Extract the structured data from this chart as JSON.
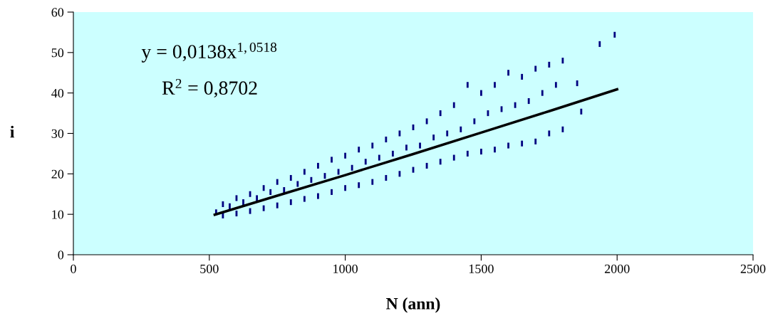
{
  "chart_data": {
    "type": "scatter",
    "xlabel": "N (ann)",
    "ylabel": "i",
    "xlim": [
      0,
      2500
    ],
    "xticks": [
      0,
      500,
      1000,
      1500,
      2000,
      2500
    ],
    "ylim": [
      0,
      60
    ],
    "yticks": [
      0,
      10,
      20,
      30,
      40,
      50,
      60
    ],
    "grid": false,
    "legend": false,
    "annotations": [
      "y = 0,0138x$^{1,0518}$",
      "R$^{2}$ = 0,8702"
    ],
    "series": [
      {
        "type": "scatter",
        "color": "#000080",
        "values": [
          10.5,
          12.5,
          9.7,
          12,
          14,
          10.2,
          13,
          15,
          10.8,
          14,
          16.5,
          11.5,
          15.5,
          18,
          12.2,
          16,
          19,
          13,
          17.5,
          20.5,
          13.8,
          18.5,
          22,
          14.5,
          19.5,
          23.5,
          15.5,
          20.5,
          24.5,
          16.5,
          21.5,
          26,
          17.2,
          23,
          27,
          18,
          24,
          28.5,
          19,
          25,
          30,
          20,
          26.5,
          31.5,
          21,
          27,
          33,
          22,
          29,
          35,
          23,
          30,
          37,
          24,
          31,
          42,
          25,
          33,
          40,
          25.5,
          35,
          42,
          26,
          36,
          45,
          27,
          37,
          44,
          27.5,
          38,
          46,
          28,
          40,
          47,
          30,
          42,
          48,
          31,
          42.4,
          35.4,
          52.1,
          54.4
        ]
      },
      {
        "type": "line",
        "color": "#000000",
        "x": [
          520,
          750,
          1000,
          1250,
          1500,
          1750,
          2000
        ],
        "values": [
          9.9,
          14.6,
          19.7,
          24.9,
          30.2,
          35.5,
          40.9
        ]
      }
    ],
    "x": [
      525,
      550,
      550,
      575,
      600,
      600,
      625,
      650,
      650,
      675,
      700,
      700,
      725,
      750,
      750,
      775,
      800,
      800,
      825,
      850,
      850,
      875,
      900,
      900,
      925,
      950,
      950,
      975,
      1000,
      1000,
      1025,
      1050,
      1050,
      1075,
      1100,
      1100,
      1125,
      1150,
      1150,
      1175,
      1200,
      1200,
      1225,
      1250,
      1250,
      1275,
      1300,
      1300,
      1325,
      1350,
      1350,
      1375,
      1400,
      1400,
      1425,
      1450,
      1450,
      1475,
      1500,
      1500,
      1525,
      1550,
      1550,
      1575,
      1600,
      1600,
      1625,
      1650,
      1650,
      1675,
      1700,
      1700,
      1725,
      1750,
      1750,
      1775,
      1800,
      1800,
      1853,
      1868,
      1936,
      1991
    ]
  }
}
